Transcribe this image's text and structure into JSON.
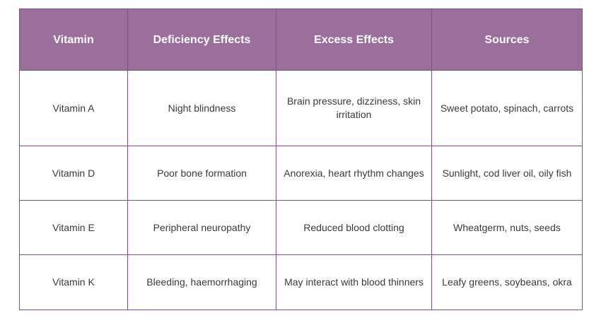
{
  "headers": [
    "Vitamin",
    "Deficiency Effects",
    "Excess Effects",
    "Sources"
  ],
  "rows": [
    [
      "Vitamin A",
      "Night blindness",
      "Brain pressure, dizziness, skin irritation",
      "Sweet potato, spinach, carrots"
    ],
    [
      "Vitamin D",
      "Poor bone formation",
      "Anorexia, heart rhythm changes",
      "Sunlight, cod liver oil, oily fish"
    ],
    [
      "Vitamin E",
      "Peripheral neuropathy",
      "Reduced blood clotting",
      "Wheatgerm, nuts, seeds"
    ],
    [
      "Vitamin K",
      "Bleeding, haemorrhaging",
      "May interact with blood thinners",
      "Leafy greens, soybeans, okra"
    ]
  ],
  "colors": {
    "header_bg": "#9b6f9b",
    "border": "#7a5288"
  }
}
